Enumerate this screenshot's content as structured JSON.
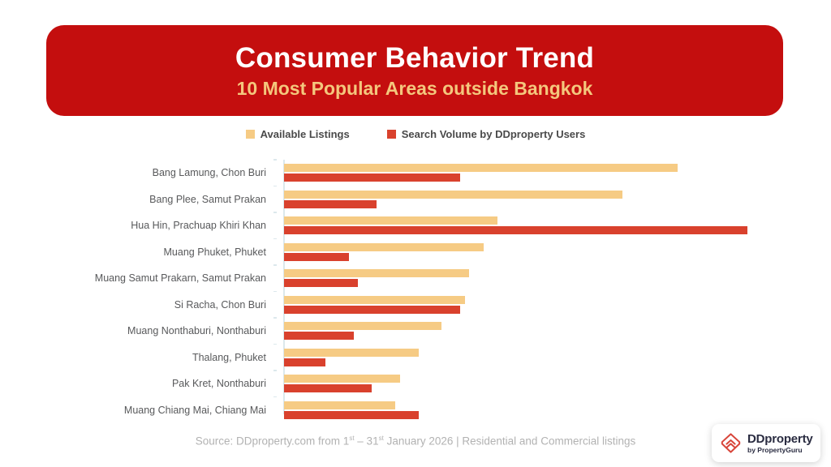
{
  "header": {
    "title": "Consumer Behavior Trend",
    "subtitle": "10 Most Popular Areas outside Bangkok",
    "bg_color": "#C40E0E",
    "title_color": "#FFFFFF",
    "subtitle_color": "#F4C77D"
  },
  "legend": {
    "items": [
      {
        "label": "Available Listings",
        "color": "#F6CB84"
      },
      {
        "label": "Search Volume by DDproperty Users",
        "color": "#D9412D"
      }
    ]
  },
  "chart_data": {
    "type": "bar",
    "orientation": "horizontal",
    "title": "Consumer Behavior Trend",
    "subtitle": "10 Most Popular Areas outside Bangkok",
    "xlabel": "",
    "ylabel": "",
    "axis_max": 100,
    "grid": false,
    "legend_position": "top",
    "value_units": "relative (no numeric axis shown; 100 = longest bar)",
    "categories": [
      "Bang Lamung, Chon Buri",
      "Bang Plee, Samut Prakan",
      "Hua Hin, Prachuap Khiri Khan",
      "Muang Phuket, Phuket",
      "Muang Samut Prakarn, Samut Prakan",
      "Si Racha, Chon Buri",
      "Muang Nonthaburi, Nonthaburi",
      "Thalang, Phuket",
      "Pak Kret, Nonthaburi",
      "Muang Chiang Mai, Chiang Mai"
    ],
    "series": [
      {
        "name": "Available Listings",
        "color": "#F6CB84",
        "values": [
          85,
          73,
          46,
          43,
          40,
          39,
          34,
          29,
          25,
          24
        ]
      },
      {
        "name": "Search Volume by DDproperty Users",
        "color": "#D9412D",
        "values": [
          38,
          20,
          100,
          14,
          16,
          38,
          15,
          9,
          19,
          29
        ]
      }
    ]
  },
  "footer": {
    "source_parts": {
      "p1": "Source: DDproperty.com from 1",
      "sup1": "st",
      "p2": " – 31",
      "sup2": "st",
      "p3": " January 2026 | Residential and Commercial listings"
    }
  },
  "logo": {
    "name": "DDproperty",
    "byline": "by PropertyGuru",
    "brand_red": "#D8453A",
    "brand_navy": "#2A2C41"
  }
}
